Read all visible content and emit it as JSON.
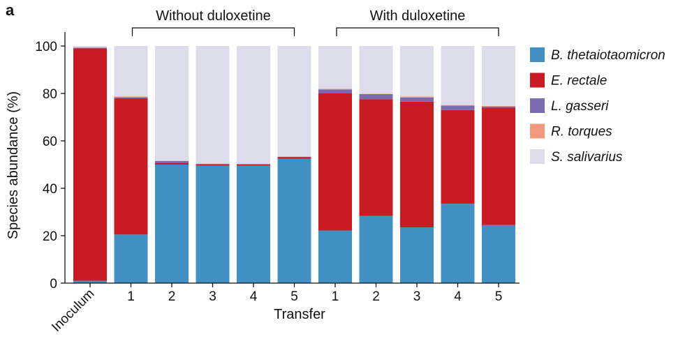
{
  "panel_label": "a",
  "chart_data": {
    "type": "bar",
    "stacked": true,
    "categories": [
      "Inoculum",
      "1",
      "2",
      "3",
      "4",
      "5",
      "1",
      "2",
      "3",
      "4",
      "5"
    ],
    "groups": [
      {
        "label": "Without duloxetine",
        "categories": [
          1,
          5
        ]
      },
      {
        "label": "With duloxetine",
        "categories": [
          6,
          10
        ]
      }
    ],
    "series": [
      {
        "name": "B. thetaiotaomicron",
        "color": "#4191c4",
        "values": [
          1.0,
          20.5,
          50.0,
          49.5,
          49.5,
          52.5,
          22.2,
          28.3,
          23.5,
          33.5,
          24.5
        ]
      },
      {
        "name": "E. rectale",
        "color": "#cb1b22",
        "values": [
          98.0,
          57.5,
          0.8,
          0.6,
          0.5,
          0.6,
          57.8,
          49.3,
          53.0,
          39.5,
          49.5
        ]
      },
      {
        "name": "L. gasseri",
        "color": "#7b6bb1",
        "values": [
          0.3,
          0.4,
          0.7,
          0.2,
          0.2,
          0.2,
          1.7,
          2.1,
          1.8,
          1.9,
          0.5
        ]
      },
      {
        "name": "R. torques",
        "color": "#f09a7e",
        "values": [
          0.1,
          0.3,
          0.1,
          0.1,
          0.1,
          0.1,
          0.3,
          0.2,
          0.4,
          0.2,
          0.2
        ]
      },
      {
        "name": "S. salivarius",
        "color": "#dcdcea",
        "values": [
          0.6,
          21.3,
          48.4,
          49.6,
          49.7,
          46.6,
          18.0,
          20.1,
          21.3,
          24.9,
          25.3
        ]
      }
    ],
    "xlabel": "Transfer",
    "ylabel": "Species abundance (%)",
    "ylim": [
      0,
      100
    ],
    "yticks": [
      0,
      20,
      40,
      60,
      80,
      100
    ],
    "grid": false,
    "legend_position": "right"
  }
}
